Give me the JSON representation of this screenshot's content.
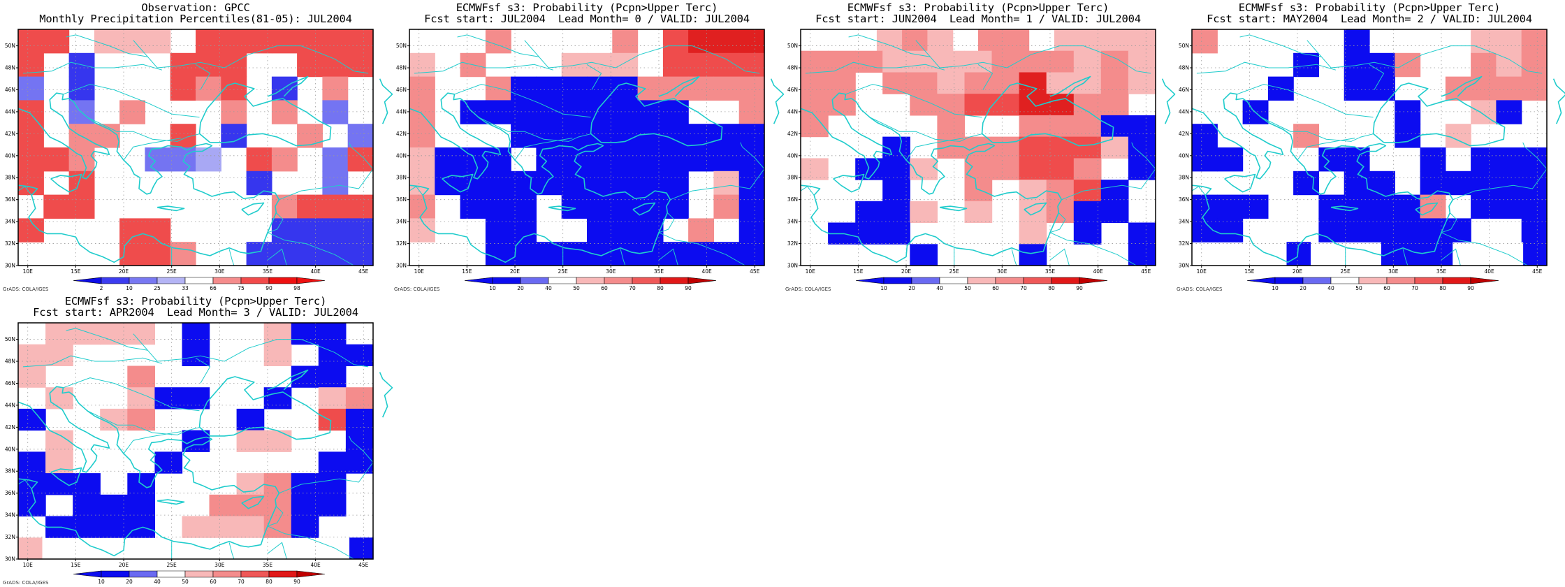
{
  "map_info": {
    "lon_ticks": [
      "10E",
      "15E",
      "20E",
      "25E",
      "30E",
      "35E",
      "40E",
      "45E"
    ],
    "lat_ticks": [
      "30N",
      "32N",
      "34N",
      "36N",
      "38N",
      "40N",
      "42N",
      "44N",
      "46N",
      "48N",
      "50N"
    ],
    "credit": "GrADS: COLA/IGES"
  },
  "colors": {
    "coast": "#20cccc",
    "grid": "#9a9a9a",
    "obs_scale": [
      "#ee1111",
      "#f24a4a",
      "#f58c8c",
      "#ffffff",
      "#b4b4f5",
      "#7878f2",
      "#3c3cf0",
      "#0d0de8"
    ],
    "fcst_scale": [
      "#0c0cf0",
      "#6a6af2",
      "#ffffff",
      "#f8b8b8",
      "#f48c8c",
      "#ef5858",
      "#e11818",
      "#c00000"
    ]
  },
  "panels": [
    {
      "id": "obs",
      "title_line1": "Observation: GPCC",
      "title_line2": "Monthly Precipitation Percentiles(81-05): JUL2004",
      "legend": {
        "labels": [
          "2",
          "10",
          "25",
          "33",
          "66",
          "75",
          "90",
          "98"
        ],
        "colors": [
          "#0d0de8",
          "#3c3cf0",
          "#7878f2",
          "#b4b4f5",
          "#ffffff",
          "#f58c8c",
          "#f24a4a",
          "#ee1111",
          "#ee1111"
        ]
      },
      "grid": [
        "77.555.7777777",
        "7.c...777..777",
        "b.c...767.c.6.",
        "7.b.6...6.6.b.",
        "7.66..7.c..6.b",
        "776..bbd.76.b7",
        "7.7......c..b.",
        ".77.......6777",
        "7...77....cccc",
        "....776..ccccc"
      ]
    },
    {
      "id": "lead0",
      "title_line1": "ECMWFsf s3: Probability (Pcpn>Upper Terc)",
      "title_line2": "Fcst start: JUL2004  Lead Month= 0 / VALID: JUL2004",
      "legend": {
        "labels": [
          "10",
          "20",
          "40",
          "50",
          "60",
          "70",
          "80",
          "90"
        ],
        "colors": [
          "#0c0cf0",
          "#0c0cf0",
          "#6a6af2",
          "#ffffff",
          "#f8b8b8",
          "#f48c8c",
          "#ef5858",
          "#e11818",
          "#c00000"
        ]
      },
      "grid": [
        "...6....6.7888",
        "5.6...555.7777",
        "6..6aaaaa66666",
        "6.aaaaaaaaa..6",
        "6...aaaaaaaaaa",
        "5aaa.aaaaaaaaa",
        "5aaaaaaaaaa.5a",
        "6.aaa.aaaaa.6a",
        "5..aa..aaa.6.a",
        "...aaaaaaaaaaa"
      ]
    },
    {
      "id": "lead1",
      "title_line1": "ECMWFsf s3: Probability (Pcpn>Upper Terc)",
      "title_line2": "Fcst start: JUN2004  Lead Month= 1 / VALID: JUL2004",
      "legend": {
        "labels": [
          "10",
          "20",
          "40",
          "50",
          "60",
          "70",
          "80",
          "90"
        ],
        "colors": [
          "#0c0cf0",
          "#0c0cf0",
          "#6a6af2",
          "#ffffff",
          "#f8b8b8",
          "#f48c8c",
          "#ef5858",
          "#e11818",
          "#c00000"
        ]
      },
      "grid": [
        "...565.66.5555",
        "6665555666565",
        "66.6656685565",
        "66..66778866.",
        "6....6..666aa",
        "...a.6667775a",
        "5.aa5.66776.a",
        "...a..6.567a.",
        "..aa5.5.56aa.",
        ".aaa....5.a.a",
        "....a...a...a"
      ]
    },
    {
      "id": "lead2",
      "title_line1": "ECMWFsf s3: Probability (Pcpn>Upper Terc)",
      "title_line2": "Fcst start: MAY2004  Lead Month= 2 / VALID: JUL2004",
      "legend": {
        "labels": [
          "10",
          "20",
          "40",
          "50",
          "60",
          "70",
          "80",
          "90"
        ],
        "colors": [
          "#0c0cf0",
          "#0c0cf0",
          "#6a6af2",
          "#ffffff",
          "#f8b8b8",
          "#f48c8c",
          "#ef5858",
          "#e11818",
          "#c00000"
        ]
      },
      "grid": [
        "6.....a....556",
        "....a.aa6..656",
        "...a..aa..6666",
        "..a.....a..5a.",
        "a...6...a.5...",
        "aa...aa..a.aaa",
        "....a.aa.aaaaa",
        "aaa..aaaa6.aaa",
        "aa...aaaaaa..a",
        "....a...aaa...a"
      ]
    },
    {
      "id": "lead3",
      "title_line1": "ECMWFsf s3: Probability (Pcpn>Upper Terc)",
      "title_line2": "Fcst start: APR2004  Lead Month= 3 / VALID: JUL2004",
      "legend": {
        "labels": [
          "10",
          "20",
          "40",
          "50",
          "60",
          "70",
          "80",
          "90"
        ],
        "colors": [
          "#0c0cf0",
          "#0c0cf0",
          "#6a6af2",
          "#ffffff",
          "#f8b8b8",
          "#f48c8c",
          "#ef5858",
          "#e11818",
          "#c00000"
        ]
      },
      "grid": [
        ".5555.a..5aa.",
        "55....a..5.aa",
        "5...6.....aa.",
        ".5..5aa..a.56",
        "a..56...a..7a",
        ".5....a.55..a",
        "a5...a.....aa",
        "aaa.a...56aa.",
        "a.aaa..666aa.",
        ".aaaa.5556a..",
        "5.............a"
      ]
    }
  ]
}
